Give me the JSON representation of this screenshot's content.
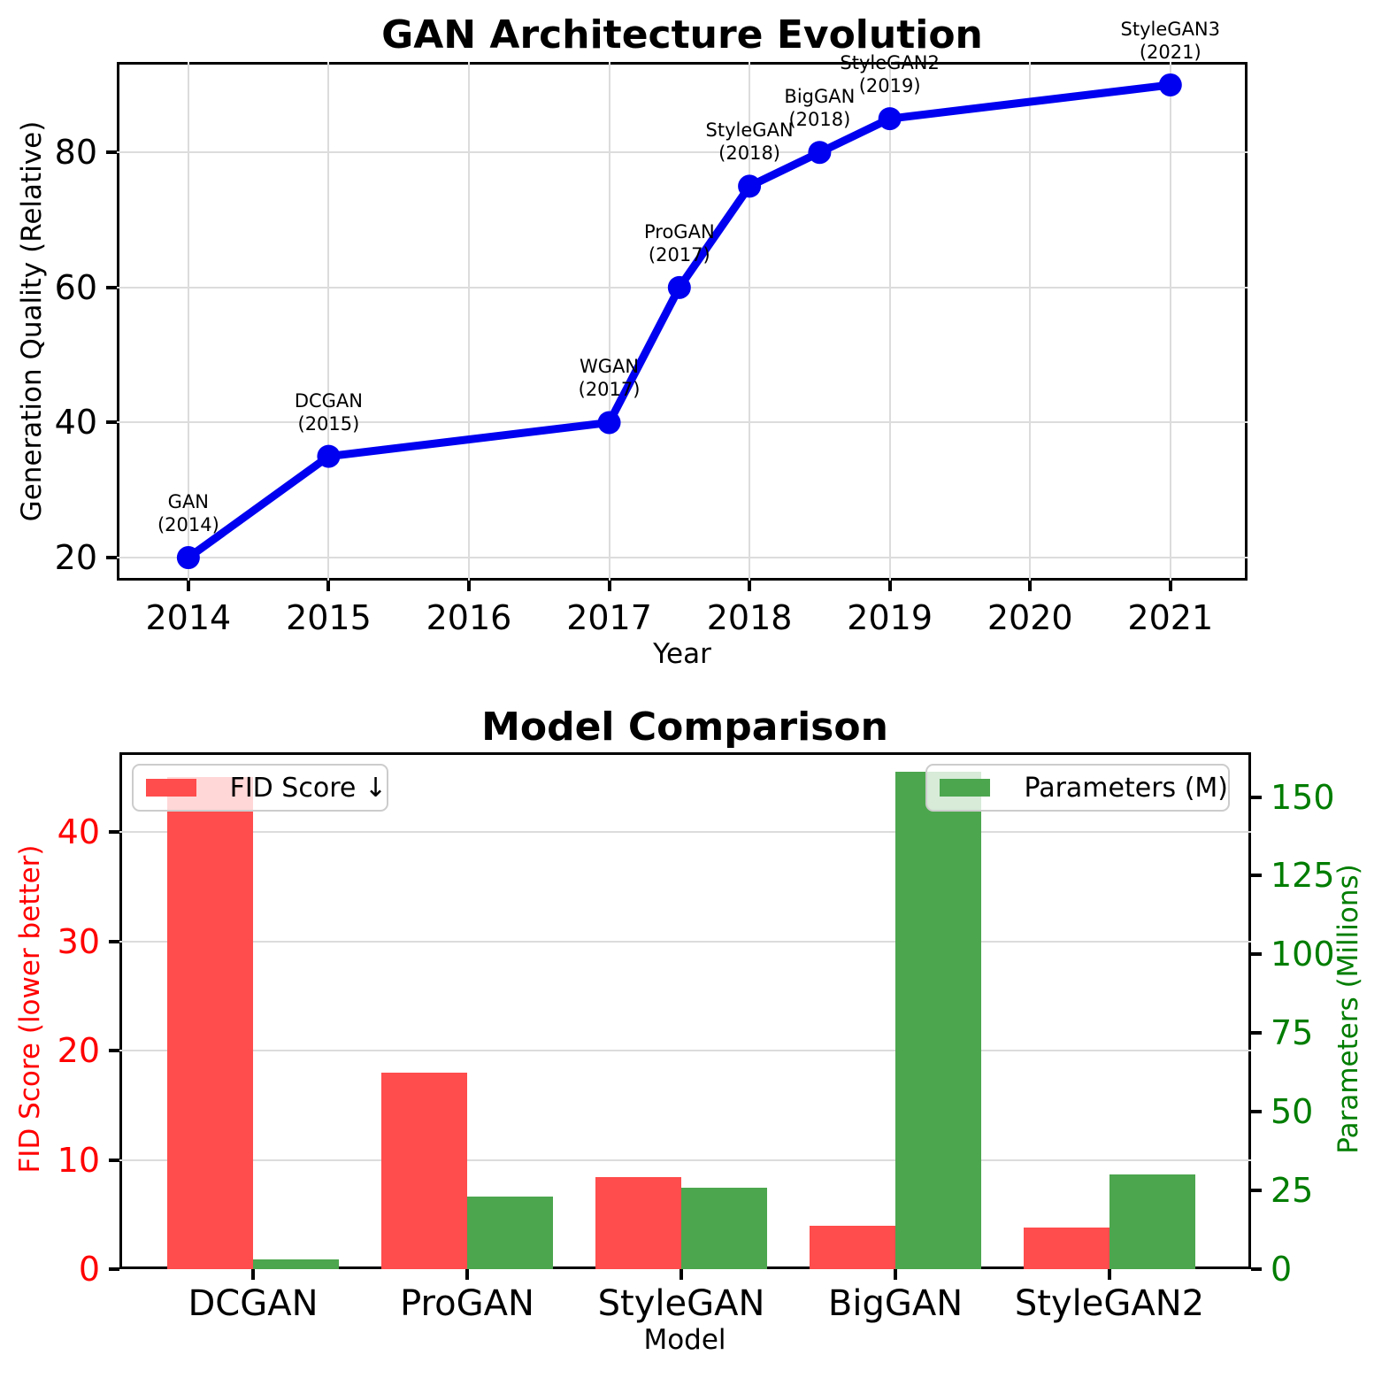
{
  "chart_data": [
    {
      "type": "line",
      "title": "GAN Architecture Evolution",
      "xlabel": "Year",
      "ylabel": "Generation Quality (Relative)",
      "x": [
        2014,
        2015,
        2017,
        2017.5,
        2018,
        2018.5,
        2019,
        2021
      ],
      "y": [
        20,
        35,
        40,
        60,
        75,
        80,
        85,
        90
      ],
      "point_labels": [
        {
          "name": "GAN",
          "year": "(2014)"
        },
        {
          "name": "DCGAN",
          "year": "(2015)"
        },
        {
          "name": "WGAN",
          "year": "(2017)"
        },
        {
          "name": "ProGAN",
          "year": "(2017)"
        },
        {
          "name": "StyleGAN",
          "year": "(2018)"
        },
        {
          "name": "BigGAN",
          "year": "(2018)"
        },
        {
          "name": "StyleGAN2",
          "year": "(2019)"
        },
        {
          "name": "StyleGAN3",
          "year": "(2021)"
        }
      ],
      "x_ticks": [
        "2014",
        "2015",
        "2016",
        "2017",
        "2018",
        "2019",
        "2020",
        "2021"
      ],
      "y_ticks": [
        20,
        40,
        60,
        80
      ],
      "xlim": [
        2013.49,
        2021.55
      ],
      "ylim": [
        16.6,
        93.4
      ],
      "line_color": "#0000f0",
      "grid": true
    },
    {
      "type": "bar",
      "title": "Model Comparison",
      "xlabel": "Model",
      "categories": [
        "DCGAN",
        "ProGAN",
        "StyleGAN",
        "BigGAN",
        "StyleGAN2"
      ],
      "series": [
        {
          "name": "FID Score ↓",
          "axis": "left",
          "color": "#ff4c4c",
          "values": [
            45,
            18,
            8.4,
            4.0,
            3.8
          ]
        },
        {
          "name": "Parameters (M)",
          "axis": "right",
          "color": "#4ca64e",
          "values": [
            3,
            23,
            26,
            158,
            30
          ]
        }
      ],
      "left_axis": {
        "label": "FID Score (lower better)",
        "color": "#ff0000",
        "ticks": [
          0,
          10,
          20,
          30,
          40
        ],
        "lim": [
          0,
          47.3
        ]
      },
      "right_axis": {
        "label": "Parameters (Millions)",
        "color": "#007d00",
        "ticks": [
          0,
          25,
          50,
          75,
          100,
          125,
          150
        ],
        "lim": [
          0,
          164.2
        ]
      },
      "grid": true,
      "legend_position_fid": "upper left",
      "legend_position_params": "upper right"
    }
  ]
}
